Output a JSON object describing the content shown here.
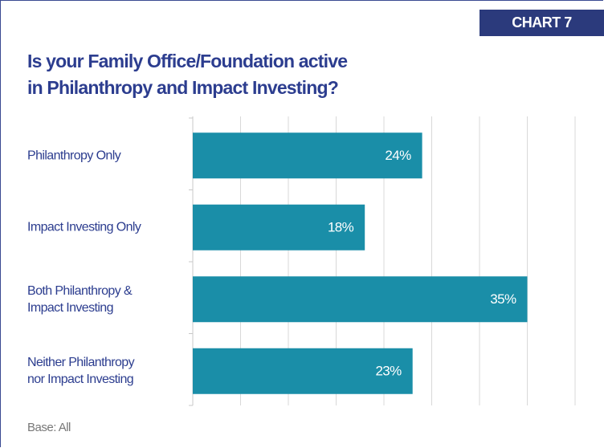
{
  "chart_data": {
    "type": "bar",
    "orientation": "horizontal",
    "badge": "CHART 7",
    "title": "Is your Family Office/Foundation active\nin Philanthropy and Impact Investing?",
    "categories": [
      "Philanthropy Only",
      "Impact Investing Only",
      "Both Philanthropy &\nImpact Investing",
      "Neither Philanthropy\nnor Impact Investing"
    ],
    "values": [
      24,
      18,
      35,
      23
    ],
    "value_labels": [
      "24%",
      "18%",
      "35%",
      "23%"
    ],
    "color": "#1a8ea8",
    "xlim": [
      0,
      40
    ],
    "xticks": [
      0,
      5,
      10,
      15,
      20,
      25,
      30,
      35,
      40
    ],
    "grid": true,
    "footnote": "Base: All"
  }
}
